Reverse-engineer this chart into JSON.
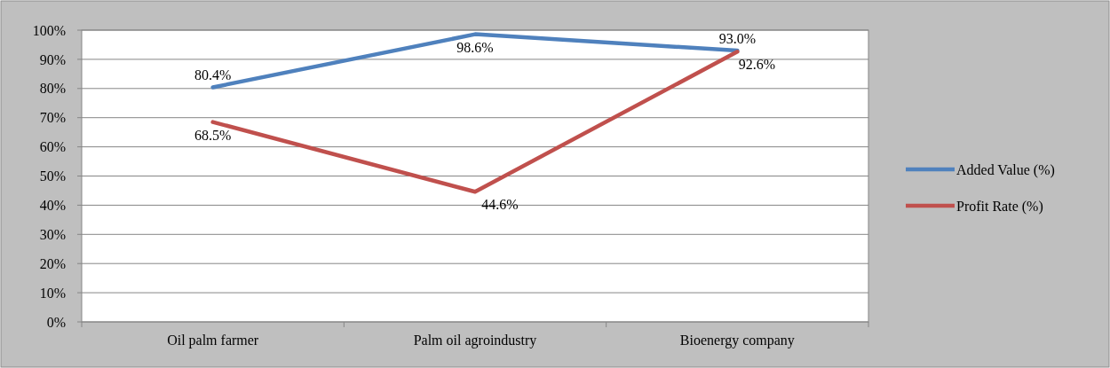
{
  "chart_data": {
    "type": "line",
    "categories": [
      "Oil palm farmer",
      "Palm oil agroindustry",
      "Bioenergy company"
    ],
    "series": [
      {
        "name": "Added Value (%)",
        "color": "#4f81bd",
        "values": [
          80.4,
          98.6,
          93.0
        ],
        "value_labels": [
          "80.4%",
          "98.6%",
          "93.0%"
        ]
      },
      {
        "name": "Profit Rate (%)",
        "color": "#c0504d",
        "values": [
          68.5,
          44.6,
          92.6
        ],
        "value_labels": [
          "68.5%",
          "44.6%",
          "92.6%"
        ]
      }
    ],
    "ylim": [
      0,
      100
    ],
    "yticks": [
      {
        "value": 0,
        "label": "0%"
      },
      {
        "value": 10,
        "label": "10%"
      },
      {
        "value": 20,
        "label": "20%"
      },
      {
        "value": 30,
        "label": "30%"
      },
      {
        "value": 40,
        "label": "40%"
      },
      {
        "value": 50,
        "label": "50%"
      },
      {
        "value": 60,
        "label": "60%"
      },
      {
        "value": 70,
        "label": "70%"
      },
      {
        "value": 80,
        "label": "80%"
      },
      {
        "value": 90,
        "label": "90%"
      },
      {
        "value": 100,
        "label": "100%"
      }
    ],
    "grid": "y",
    "legend": "right",
    "marker": "none",
    "line_style": "solid"
  }
}
